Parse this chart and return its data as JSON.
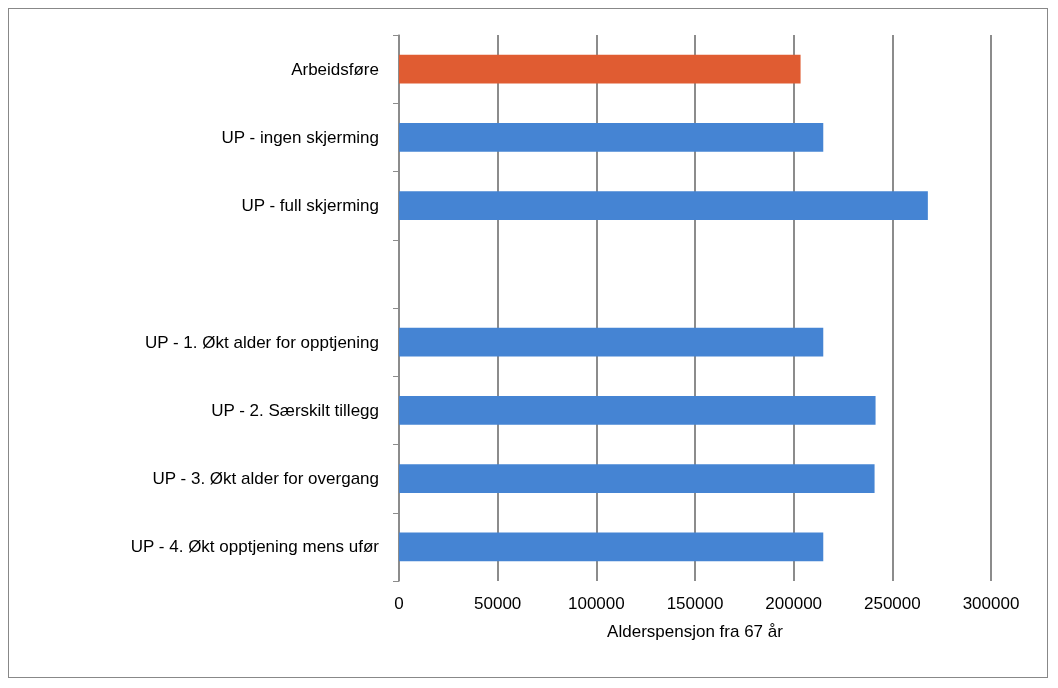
{
  "chart_data": {
    "type": "bar",
    "orientation": "horizontal",
    "xlabel": "Alderspensjon fra 67 år",
    "categories": [
      "Arbeidsføre",
      "UP - ingen skjerming",
      "UP - full skjerming",
      null,
      "UP - 1. Økt alder for opptjening",
      "UP - 2. Særskilt tillegg",
      "UP - 3. Økt alder for overgang",
      "UP - 4. Økt opptjening mens ufør"
    ],
    "values": [
      203500,
      215000,
      268000,
      null,
      215000,
      241500,
      241000,
      215000
    ],
    "colors": [
      "#e05c32",
      "#4584d3",
      "#4584d3",
      "#4584d3",
      "#4584d3",
      "#4584d3",
      "#4584d3",
      "#4584d3"
    ],
    "xlim": [
      0,
      300000
    ],
    "xticks": [
      0,
      50000,
      100000,
      150000,
      200000,
      250000,
      300000
    ],
    "grid": "x"
  }
}
